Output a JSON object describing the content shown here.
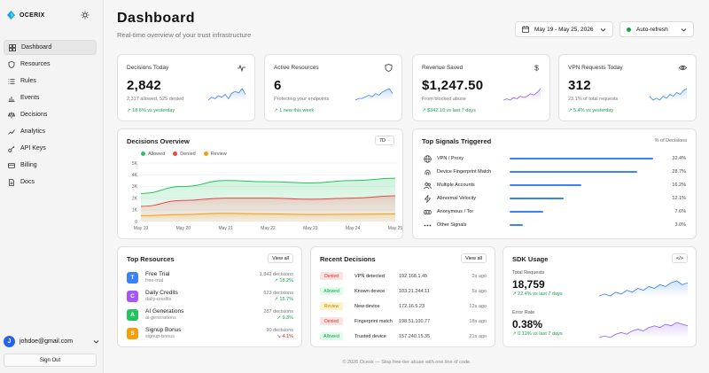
{
  "brand": {
    "name": "OCERIX"
  },
  "sidebar": {
    "items": [
      {
        "label": "Dashboard",
        "icon": "grid-icon"
      },
      {
        "label": "Resources",
        "icon": "shield-icon"
      },
      {
        "label": "Rules",
        "icon": "list-icon"
      },
      {
        "label": "Events",
        "icon": "chart-icon"
      },
      {
        "label": "Decisions",
        "icon": "scale-icon"
      },
      {
        "label": "Analytics",
        "icon": "trend-icon"
      },
      {
        "label": "API Keys",
        "icon": "key-icon"
      },
      {
        "label": "Billing",
        "icon": "card-icon"
      },
      {
        "label": "Docs",
        "icon": "doc-icon"
      }
    ],
    "user": {
      "initial": "J",
      "email": "johdoe@gmail.com"
    },
    "signout": "Sign Out"
  },
  "header": {
    "title": "Dashboard",
    "subtitle": "Real-time overview of your trust infrastructure",
    "date_range": "May 19 - May 25, 2026",
    "autorefresh": "Auto-refresh"
  },
  "stats": [
    {
      "title": "Decisions Today",
      "value": "2,842",
      "note": "2,317 allowed, 525 denied",
      "delta": "↗ 18.6% vs yesterday",
      "icon": "pulse-icon",
      "color": "#3b82f6",
      "trend": [
        4,
        6,
        5,
        7,
        6,
        8,
        5,
        9,
        10,
        9,
        12,
        8
      ]
    },
    {
      "title": "Active Resources",
      "value": "6",
      "note": "Protecting your endpoints",
      "delta": "↗ 1 new this week",
      "icon": "shield-icon",
      "color": "#3b82f6",
      "trend": [
        3,
        4,
        4,
        5,
        6,
        5,
        7,
        6,
        8,
        9,
        10,
        7
      ]
    },
    {
      "title": "Revenue Saved",
      "value": "$1,247.50",
      "note": "From blocked abuse",
      "delta": "↗ $342.10 vs last 7 days",
      "icon": "dollar-icon",
      "color": "#8b5cf6",
      "trend": [
        3,
        4,
        3,
        5,
        4,
        6,
        5,
        6,
        8,
        7,
        9,
        12
      ]
    },
    {
      "title": "VPN Requests Today",
      "value": "312",
      "note": "23.1% of total requests",
      "delta": "↗ 5.4% vs yesterday",
      "icon": "eye-icon",
      "color": "#3b82f6",
      "trend": [
        6,
        4,
        5,
        4,
        6,
        5,
        7,
        6,
        8,
        7,
        9,
        10
      ]
    }
  ],
  "overview": {
    "title": "Decisions Overview",
    "range": "7D",
    "legend": [
      {
        "name": "Allowed",
        "color": "#22c55e"
      },
      {
        "name": "Denied",
        "color": "#ef4444"
      },
      {
        "name": "Review",
        "color": "#f59e0b"
      }
    ]
  },
  "chart_data": {
    "type": "area",
    "x": [
      "May 19",
      "May 20",
      "May 21",
      "May 22",
      "May 23",
      "May 24",
      "May 25"
    ],
    "series": [
      {
        "name": "Allowed",
        "values": [
          2400,
          3000,
          3500,
          3400,
          3300,
          3500,
          3700
        ]
      },
      {
        "name": "Denied",
        "values": [
          1300,
          1800,
          2000,
          2000,
          1900,
          2000,
          2200
        ]
      },
      {
        "name": "Review",
        "values": [
          500,
          600,
          700,
          650,
          600,
          620,
          650
        ]
      }
    ],
    "y_ticks": [
      "5K",
      "4K",
      "3K",
      "2K",
      "1K",
      "0"
    ],
    "ylim": [
      0,
      5000
    ]
  },
  "signals": {
    "title": "Top Signals Triggered",
    "unit": "% of Decisions",
    "items": [
      {
        "label": "VPN / Proxy",
        "pct": "32.4%",
        "value": 32.4,
        "icon": "globe-icon"
      },
      {
        "label": "Device Fingerprint Match",
        "pct": "28.7%",
        "value": 28.7,
        "icon": "fingerprint-icon"
      },
      {
        "label": "Multiple Accounts",
        "pct": "16.2%",
        "value": 16.2,
        "icon": "users-icon"
      },
      {
        "label": "Abnormal Velocity",
        "pct": "12.1%",
        "value": 12.1,
        "icon": "bolt-icon"
      },
      {
        "label": "Anonymous / Tor",
        "pct": "7.6%",
        "value": 7.6,
        "icon": "mask-icon"
      },
      {
        "label": "Other Signals",
        "pct": "3.0%",
        "value": 3.0,
        "icon": "dots-icon"
      }
    ]
  },
  "resources": {
    "title": "Top Resources",
    "viewall": "View all",
    "items": [
      {
        "letter": "T",
        "name": "Free Trial",
        "slug": "free-trial",
        "count": "1,842 decisions",
        "delta": "↗ 18.2%",
        "color": "#3b82f6",
        "delta_color": "#16a34a"
      },
      {
        "letter": "C",
        "name": "Daily Credits",
        "slug": "daily-credits",
        "count": "623 decisions",
        "delta": "↗ 15.7%",
        "color": "#a855f7",
        "delta_color": "#16a34a"
      },
      {
        "letter": "A",
        "name": "AI Generations",
        "slug": "ai-generations",
        "count": "287 decisions",
        "delta": "↗ 9.3%",
        "color": "#22c55e",
        "delta_color": "#16a34a"
      },
      {
        "letter": "S",
        "name": "Signup Bonus",
        "slug": "signup-bonus",
        "count": "90 decisions",
        "delta": "↘ 4.1%",
        "color": "#f59e0b",
        "delta_color": "#dc2626"
      }
    ]
  },
  "recent": {
    "title": "Recent Decisions",
    "viewall": "View all",
    "items": [
      {
        "status": "Denied",
        "reason": "VPN detected",
        "ip": "192.168.1.45",
        "time": "2s ago",
        "bg": "#fde2e2",
        "fg": "#dc2626"
      },
      {
        "status": "Allowed",
        "reason": "Known device",
        "ip": "103.21.244.11",
        "time": "5s ago",
        "bg": "#dcfce7",
        "fg": "#16a34a"
      },
      {
        "status": "Review",
        "reason": "New device",
        "ip": "172.16.5.23",
        "time": "12s ago",
        "bg": "#fef3c7",
        "fg": "#d97706"
      },
      {
        "status": "Denied",
        "reason": "Fingerprint match",
        "ip": "198.51.100.77",
        "time": "18s ago",
        "bg": "#fde2e2",
        "fg": "#dc2626"
      },
      {
        "status": "Allowed",
        "reason": "Trusted device",
        "ip": "157.240.15.35",
        "time": "21s ago",
        "bg": "#dcfce7",
        "fg": "#16a34a"
      }
    ]
  },
  "sdk": {
    "title": "SDK Usage",
    "code": "</>",
    "total_label": "Total Requests",
    "total_value": "18,759",
    "total_delta": "↗ 22.4% vs last 7 days",
    "error_label": "Error Rate",
    "error_value": "0.38%",
    "error_delta": "↗ 0.12% vs last 7 days",
    "total_trend": [
      5,
      6,
      5,
      7,
      6,
      8,
      7,
      9,
      8,
      10,
      9,
      11,
      10,
      12,
      13,
      11,
      12
    ],
    "error_trend": [
      3,
      4,
      3,
      5,
      6,
      5,
      7,
      8,
      7,
      9,
      10,
      9,
      11,
      10,
      12,
      11,
      10
    ]
  },
  "footer": "© 2026 Ocerix — Stop free-tier abuse with one line of code."
}
